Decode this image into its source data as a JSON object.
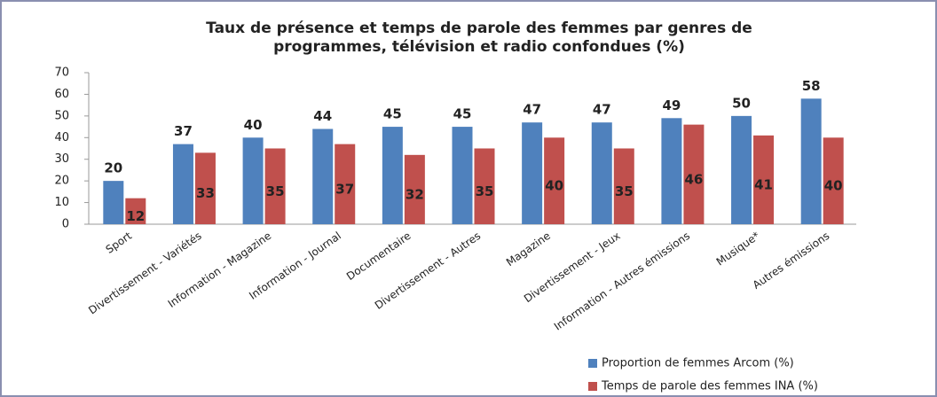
{
  "chart_data": {
    "type": "bar",
    "title": [
      "Taux de présence et temps de parole des femmes  par genres de",
      "programmes, télévision et radio confondues (%)"
    ],
    "categories": [
      "Sport",
      "Divertissement - Variétés",
      "Information - Magazine",
      "Information - Journal",
      "Documentaire",
      "Divertissement - Autres",
      "Magazine",
      "Divertissement - Jeux",
      "Information - Autres émissions",
      "Musique*",
      "Autres émissions"
    ],
    "series": [
      {
        "name": "Proportion de femmes Arcom (%)",
        "color": "#4f81bd",
        "values": [
          20,
          37,
          40,
          44,
          45,
          45,
          47,
          47,
          49,
          50,
          58
        ]
      },
      {
        "name": "Temps de parole des femmes INA (%)",
        "color": "#c0504d",
        "values": [
          12,
          33,
          35,
          37,
          32,
          35,
          40,
          35,
          46,
          41,
          40
        ]
      }
    ],
    "ylim": [
      0,
      70
    ],
    "yticks": [
      0,
      10,
      20,
      30,
      40,
      50,
      60,
      70
    ],
    "grid": false,
    "legend": "bottom-right"
  }
}
